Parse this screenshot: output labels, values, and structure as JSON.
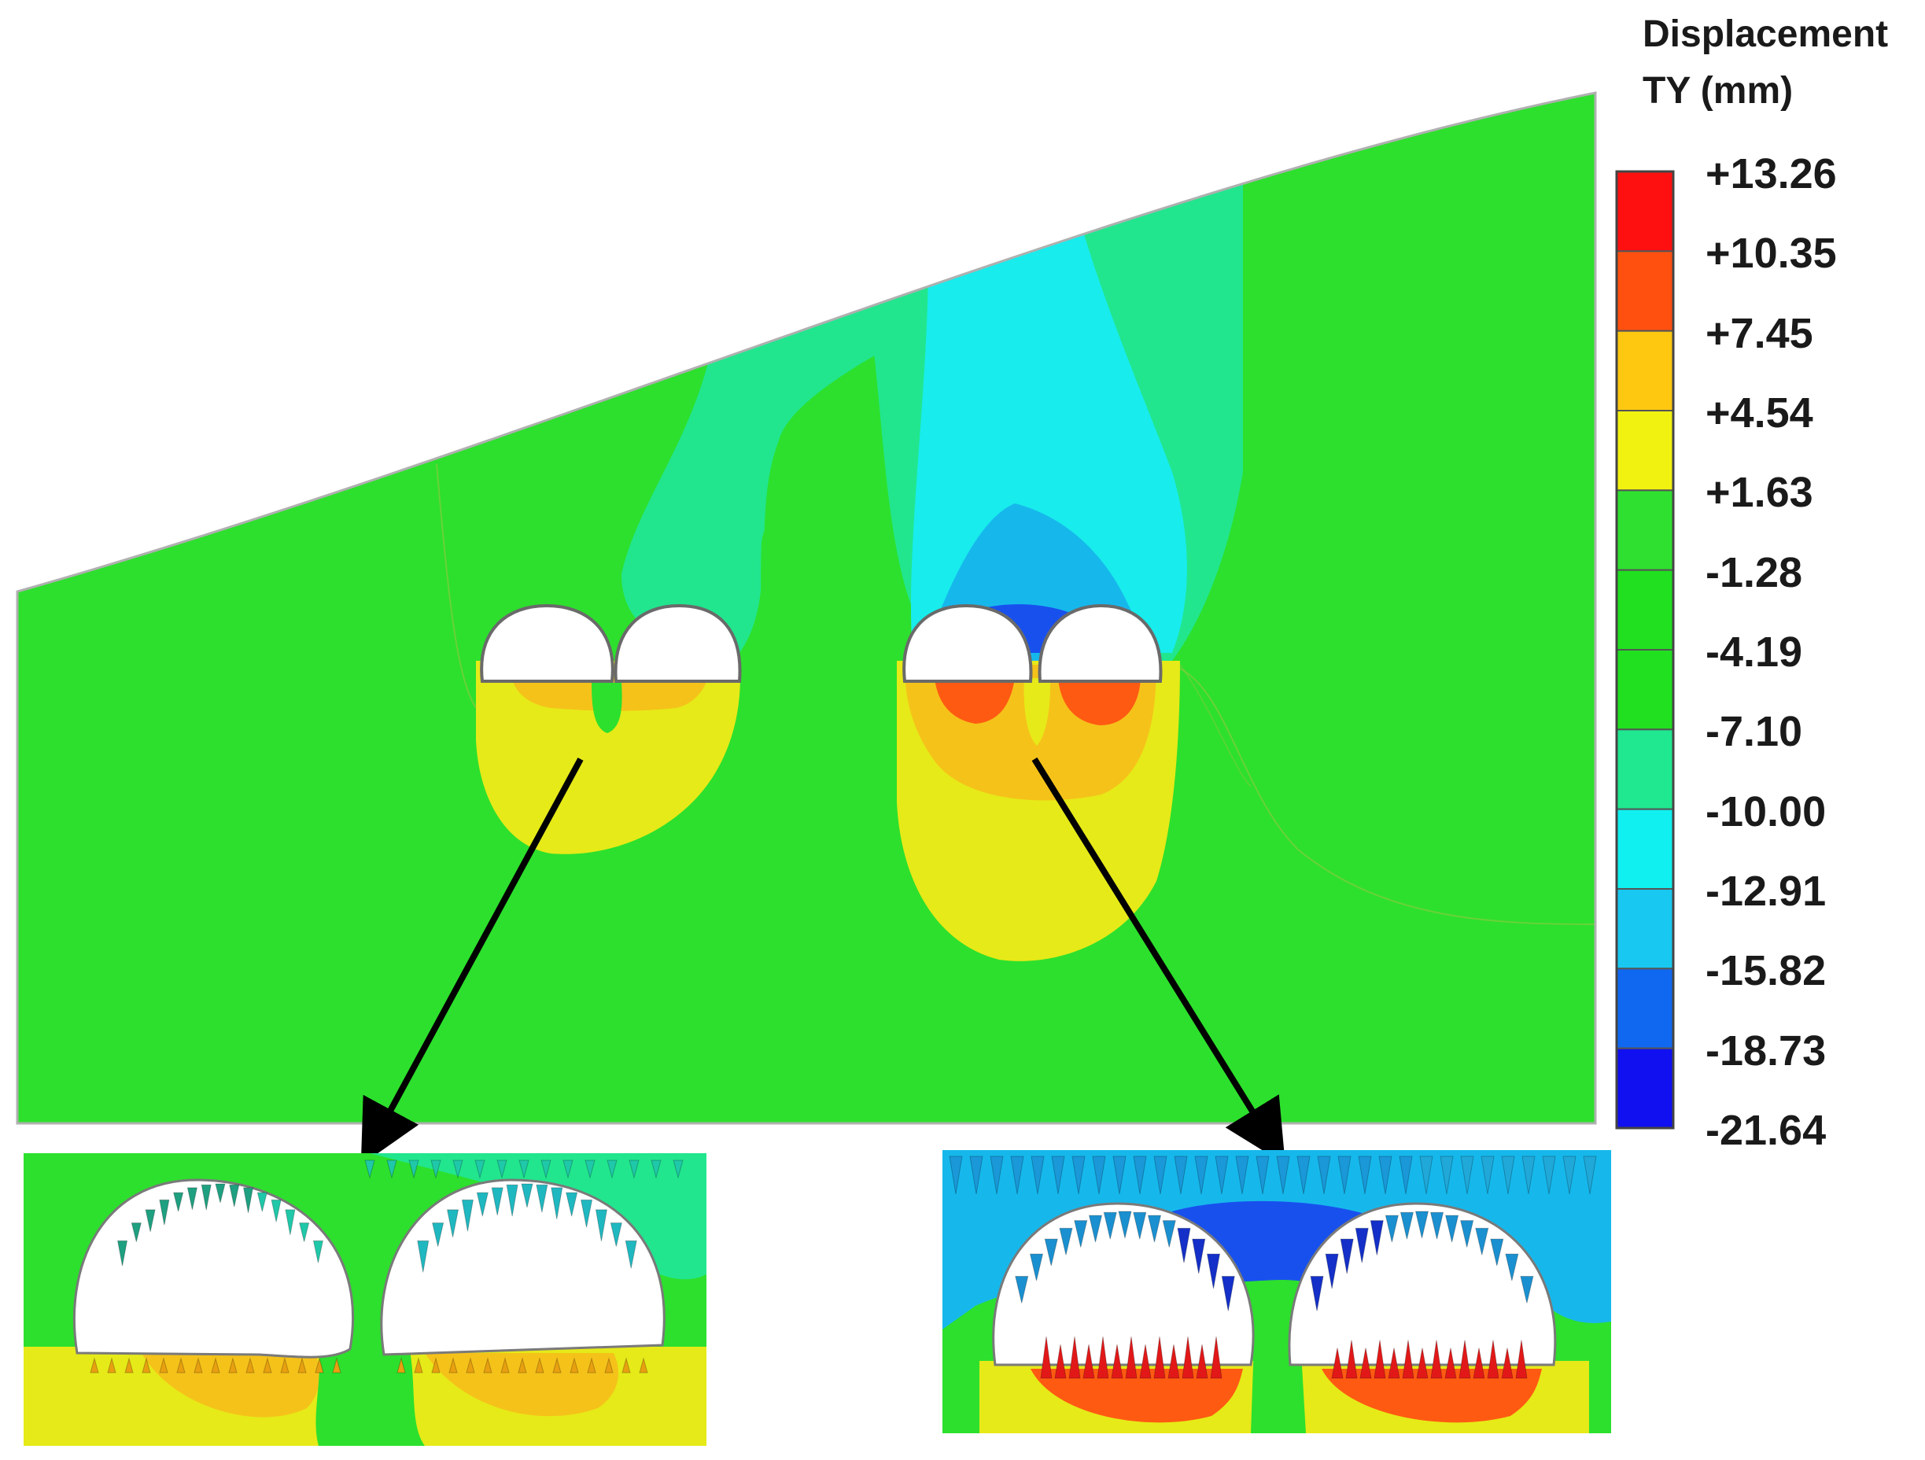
{
  "legend": {
    "title_line1": "Displacement",
    "title_line2": "TY (mm)",
    "levels": [
      "+13.26",
      "+10.35",
      "+7.45",
      "+4.54",
      "+1.63",
      "-1.28",
      "-4.19",
      "-7.10",
      "-10.00",
      "-12.91",
      "-15.82",
      "-18.73",
      "-21.64"
    ],
    "band_colors": [
      "#ff1010",
      "#ff5010",
      "#ffc810",
      "#f2f210",
      "#30e030",
      "#20e020",
      "#20e020",
      "#20e890",
      "#10f0f0",
      "#18c8f0",
      "#1068f0",
      "#1010f0"
    ]
  },
  "colors": {
    "ground": "#2de02d",
    "upheave_outer": "#e6ea18",
    "upheave_mid": "#f5c21a",
    "upheave_inner": "#ff5a12",
    "settle_light": "#21e68e",
    "settle_mid": "#18ecec",
    "settle_deep": "#16b8ec",
    "settle_max": "#1850ee"
  }
}
